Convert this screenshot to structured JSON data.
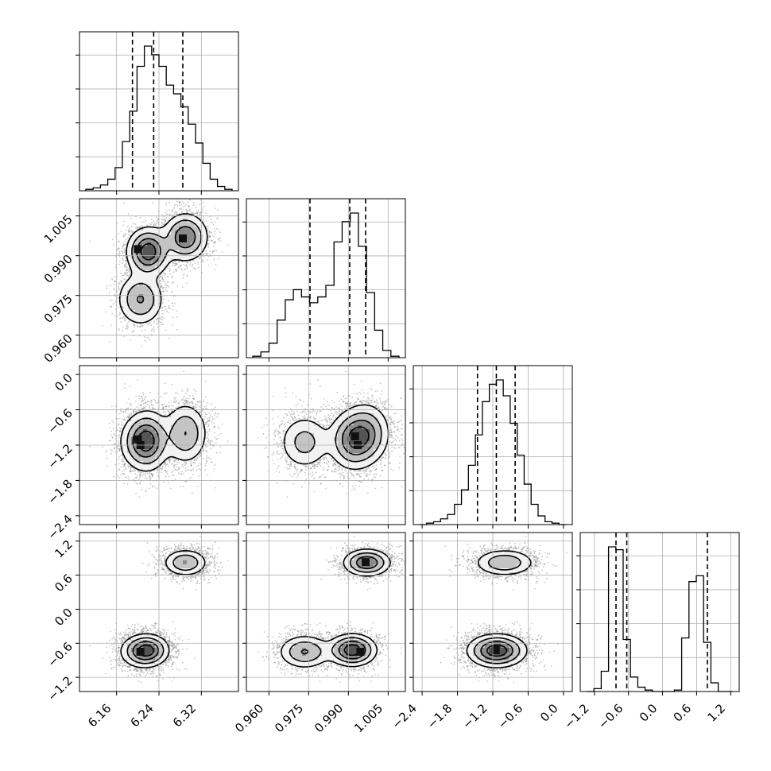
{
  "chart_data": {
    "type": "corner",
    "parameters": 4,
    "grid": true,
    "hist_color": "#000000",
    "scatter_color": "#888888",
    "axes": [
      {
        "range": [
          6.09,
          6.39
        ],
        "ticks": [
          "6.16",
          "6.24",
          "6.32"
        ],
        "tick_values": [
          6.16,
          6.24,
          6.32
        ]
      },
      {
        "range": [
          0.9515,
          1.0115
        ],
        "ticks": [
          "0.960",
          "0.975",
          "0.990",
          "1.005"
        ],
        "tick_values": [
          0.96,
          0.975,
          0.99,
          1.005
        ]
      },
      {
        "range": [
          -2.55,
          0.15
        ],
        "ticks": [
          "−2.4",
          "−1.8",
          "−1.2",
          "−0.6",
          "0.0"
        ],
        "tick_values": [
          -2.4,
          -1.8,
          -1.2,
          -0.6,
          0.0
        ]
      },
      {
        "range": [
          -1.45,
          1.35
        ],
        "ticks": [
          "−1.2",
          "−0.6",
          "0.0",
          "0.6",
          "1.2"
        ],
        "tick_values": [
          -1.2,
          -0.6,
          0.0,
          0.6,
          1.2
        ]
      }
    ],
    "marginals": [
      {
        "quantiles": [
          6.19,
          6.23,
          6.285
        ],
        "max": 1.0,
        "values": [
          0.01,
          0.02,
          0.04,
          0.08,
          0.16,
          0.34,
          0.55,
          0.86,
          1.0,
          0.94,
          0.86,
          0.73,
          0.67,
          0.58,
          0.46,
          0.33,
          0.19,
          0.08,
          0.03,
          0.01
        ]
      },
      {
        "quantiles": [
          0.9755,
          0.9905,
          0.9965
        ],
        "max": 1.0,
        "values": [
          0.01,
          0.04,
          0.1,
          0.26,
          0.4,
          0.47,
          0.42,
          0.38,
          0.42,
          0.5,
          0.8,
          0.94,
          1.0,
          0.77,
          0.45,
          0.19,
          0.05,
          0.01
        ]
      },
      {
        "quantiles": [
          -1.46,
          -1.14,
          -0.82
        ],
        "max": 1.0,
        "values": [
          0.0,
          0.01,
          0.02,
          0.04,
          0.07,
          0.14,
          0.24,
          0.41,
          0.62,
          0.85,
          0.97,
          1.0,
          0.89,
          0.7,
          0.48,
          0.28,
          0.14,
          0.06,
          0.02,
          0.01,
          0.0
        ]
      },
      {
        "quantiles": [
          -0.82,
          -0.63,
          0.79
        ],
        "max": 1.0,
        "values": [
          0.0,
          0.02,
          0.14,
          1.0,
          0.98,
          0.36,
          0.1,
          0.03,
          0.01,
          0.0,
          0.0,
          0.0,
          0.01,
          0.37,
          0.76,
          0.8,
          0.34,
          0.06,
          0.0,
          0.0
        ]
      }
    ],
    "components": [
      {
        "mean": [
          6.205,
          0.9735,
          -1.15,
          -0.75
        ],
        "sd": [
          0.022,
          0.005,
          0.24,
          0.15
        ],
        "weight": 0.24
      },
      {
        "mean": [
          6.22,
          0.9915,
          -1.12,
          -0.72
        ],
        "sd": [
          0.02,
          0.0045,
          0.25,
          0.14
        ],
        "weight": 0.42
      },
      {
        "mean": [
          6.29,
          0.997,
          -1.0,
          0.82
        ],
        "sd": [
          0.021,
          0.0045,
          0.26,
          0.12
        ],
        "weight": 0.34
      }
    ],
    "dense_cells": [
      {
        "pair": [
          1,
          0
        ],
        "points": [
          [
            6.2,
            0.9925
          ],
          [
            6.285,
            0.9965
          ]
        ]
      },
      {
        "pair": [
          2,
          0
        ],
        "points": [
          [
            6.2,
            -1.1
          ],
          [
            6.205,
            -1.2
          ]
        ]
      },
      {
        "pair": [
          2,
          1
        ],
        "points": [
          [
            0.9925,
            -1.05
          ],
          [
            0.9935,
            -1.2
          ]
        ]
      },
      {
        "pair": [
          3,
          0
        ],
        "points": [
          [
            6.205,
            -0.75
          ]
        ]
      },
      {
        "pair": [
          3,
          1
        ],
        "points": [
          [
            0.9965,
            0.83
          ],
          [
            0.9945,
            -0.75
          ]
        ]
      },
      {
        "pair": [
          3,
          2
        ],
        "points": [
          [
            -1.15,
            -0.72
          ]
        ]
      }
    ],
    "contour_levels": [
      0.3,
      0.55,
      0.8
    ]
  }
}
